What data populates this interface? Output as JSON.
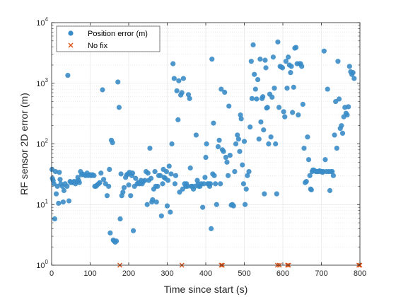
{
  "chart_data": {
    "type": "scatter",
    "title": "",
    "xlabel": "Time since start (s)",
    "ylabel": "RF sensor 2D error (m)",
    "xlim": [
      0,
      800
    ],
    "ylim": [
      1,
      10000
    ],
    "yscale": "log",
    "grid": true,
    "minor_grid": true,
    "legend_position": "top-left",
    "x_ticks": [
      0,
      100,
      200,
      300,
      400,
      500,
      600,
      700,
      800
    ],
    "y_ticks": [
      1,
      10,
      100,
      1000,
      10000
    ],
    "y_tick_labels": [
      {
        "base": "10",
        "exp": "0"
      },
      {
        "base": "10",
        "exp": "1"
      },
      {
        "base": "10",
        "exp": "2"
      },
      {
        "base": "10",
        "exp": "3"
      },
      {
        "base": "10",
        "exp": "4"
      }
    ],
    "series": [
      {
        "name": "Position error (m)",
        "marker": "circle",
        "color": "#3a8cc8",
        "points": [
          [
            1,
            38
          ],
          [
            2,
            27
          ],
          [
            4,
            25
          ],
          [
            6,
            22
          ],
          [
            8,
            5.8
          ],
          [
            10,
            35
          ],
          [
            12,
            15
          ],
          [
            15,
            20
          ],
          [
            18,
            10.5
          ],
          [
            20,
            34
          ],
          [
            22,
            26
          ],
          [
            24,
            22
          ],
          [
            28,
            20
          ],
          [
            30,
            11
          ],
          [
            32,
            17
          ],
          [
            35,
            22
          ],
          [
            40,
            20
          ],
          [
            42,
            1350
          ],
          [
            45,
            11.5
          ],
          [
            48,
            24
          ],
          [
            50,
            23
          ],
          [
            55,
            23
          ],
          [
            58,
            24
          ],
          [
            62,
            22
          ],
          [
            65,
            24
          ],
          [
            68,
            28
          ],
          [
            70,
            25
          ],
          [
            72,
            23
          ],
          [
            75,
            35
          ],
          [
            78,
            31
          ],
          [
            80,
            32
          ],
          [
            85,
            31
          ],
          [
            88,
            30
          ],
          [
            92,
            33
          ],
          [
            95,
            30
          ],
          [
            100,
            31
          ],
          [
            103,
            30
          ],
          [
            106,
            31
          ],
          [
            110,
            30
          ],
          [
            112,
            20
          ],
          [
            115,
            20
          ],
          [
            118,
            21
          ],
          [
            122,
            22
          ],
          [
            125,
            23
          ],
          [
            128,
            33
          ],
          [
            132,
            780
          ],
          [
            135,
            26
          ],
          [
            140,
            22
          ],
          [
            144,
            14
          ],
          [
            148,
            20
          ],
          [
            150,
            38
          ],
          [
            152,
            3.4
          ],
          [
            155,
            115
          ],
          [
            158,
            105
          ],
          [
            160,
            2.6
          ],
          [
            162,
            2.5
          ],
          [
            165,
            2.4
          ],
          [
            168,
            2.5
          ],
          [
            172,
            1050
          ],
          [
            175,
            400
          ],
          [
            178,
            5.8
          ],
          [
            180,
            32
          ],
          [
            182,
            14
          ],
          [
            185,
            16
          ],
          [
            188,
            19
          ],
          [
            192,
            28
          ],
          [
            195,
            31
          ],
          [
            198,
            32
          ],
          [
            200,
            21
          ],
          [
            202,
            34
          ],
          [
            205,
            14
          ],
          [
            208,
            30
          ],
          [
            210,
            33
          ],
          [
            212,
            3.7
          ],
          [
            215,
            20
          ],
          [
            218,
            27
          ],
          [
            222,
            22
          ],
          [
            225,
            23
          ],
          [
            228,
            22
          ],
          [
            230,
            23
          ],
          [
            232,
            25
          ],
          [
            235,
            22
          ],
          [
            238,
            24
          ],
          [
            242,
            25
          ],
          [
            245,
            35
          ],
          [
            248,
            10
          ],
          [
            250,
            33
          ],
          [
            252,
            25
          ],
          [
            255,
            85
          ],
          [
            258,
            27
          ],
          [
            260,
            11
          ],
          [
            262,
            12
          ],
          [
            265,
            18
          ],
          [
            268,
            35
          ],
          [
            270,
            20
          ],
          [
            272,
            11
          ],
          [
            275,
            20
          ],
          [
            278,
            30
          ],
          [
            282,
            30
          ],
          [
            285,
            6.5
          ],
          [
            288,
            22
          ],
          [
            290,
            38
          ],
          [
            292,
            28
          ],
          [
            295,
            27
          ],
          [
            298,
            35
          ],
          [
            300,
            9.5
          ],
          [
            302,
            25
          ],
          [
            305,
            43
          ],
          [
            308,
            7.5
          ],
          [
            310,
            32
          ],
          [
            312,
            100
          ],
          [
            315,
            2100
          ],
          [
            318,
            1200
          ],
          [
            320,
            22
          ],
          [
            322,
            30
          ],
          [
            325,
            750
          ],
          [
            328,
            250
          ],
          [
            330,
            1100
          ],
          [
            332,
            16
          ],
          [
            335,
            640
          ],
          [
            338,
            700
          ],
          [
            340,
            18
          ],
          [
            342,
            1200
          ],
          [
            345,
            22
          ],
          [
            348,
            20
          ],
          [
            350,
            22
          ],
          [
            352,
            20
          ],
          [
            355,
            650
          ],
          [
            358,
            560
          ],
          [
            360,
            40
          ],
          [
            362,
            20
          ],
          [
            365,
            20
          ],
          [
            368,
            18
          ],
          [
            372,
            20
          ],
          [
            375,
            140
          ],
          [
            378,
            25
          ],
          [
            380,
            22
          ],
          [
            382,
            20
          ],
          [
            385,
            20
          ],
          [
            388,
            22
          ],
          [
            392,
            9
          ],
          [
            395,
            22
          ],
          [
            398,
            28
          ],
          [
            400,
            60
          ],
          [
            402,
            100
          ],
          [
            405,
            22
          ],
          [
            408,
            22
          ],
          [
            410,
            20
          ],
          [
            412,
            22
          ],
          [
            414,
            4
          ],
          [
            416,
            2500
          ],
          [
            418,
            32
          ],
          [
            420,
            220
          ],
          [
            422,
            30
          ],
          [
            425,
            22
          ],
          [
            428,
            10
          ],
          [
            432,
            90
          ],
          [
            435,
            115
          ],
          [
            438,
            22
          ],
          [
            440,
            800
          ],
          [
            443,
            80
          ],
          [
            446,
            75
          ],
          [
            449,
            710
          ],
          [
            452,
            60
          ],
          [
            455,
            50
          ],
          [
            458,
            30
          ],
          [
            460,
            420
          ],
          [
            463,
            65
          ],
          [
            466,
            9.8
          ],
          [
            469,
            10
          ],
          [
            472,
            9.5
          ],
          [
            475,
            35
          ],
          [
            478,
            100
          ],
          [
            482,
            140
          ],
          [
            485,
            120
          ],
          [
            488,
            75
          ],
          [
            490,
            300
          ],
          [
            492,
            260
          ],
          [
            495,
            45
          ],
          [
            498,
            22
          ],
          [
            500,
            110
          ],
          [
            502,
            10
          ],
          [
            505,
            18
          ],
          [
            508,
            30
          ],
          [
            512,
            35
          ],
          [
            515,
            190
          ],
          [
            518,
            2300
          ],
          [
            520,
            560
          ],
          [
            523,
            4300
          ],
          [
            526,
            1400
          ],
          [
            529,
            800
          ],
          [
            532,
            550
          ],
          [
            535,
            1150
          ],
          [
            538,
            120
          ],
          [
            541,
            2500
          ],
          [
            543,
            230
          ],
          [
            546,
            560
          ],
          [
            548,
            600
          ],
          [
            550,
            170
          ],
          [
            552,
            15
          ],
          [
            554,
            2400
          ],
          [
            556,
            1800
          ],
          [
            558,
            390
          ],
          [
            560,
            400
          ],
          [
            563,
            100
          ],
          [
            566,
            660
          ],
          [
            569,
            130
          ],
          [
            572,
            590
          ],
          [
            575,
            2700
          ],
          [
            578,
            830
          ],
          [
            581,
            100
          ],
          [
            584,
            15
          ],
          [
            587,
            4800
          ],
          [
            590,
            400
          ],
          [
            593,
            1900
          ],
          [
            596,
            1850
          ],
          [
            599,
            1800
          ],
          [
            602,
            340
          ],
          [
            605,
            280
          ],
          [
            608,
            2300
          ],
          [
            611,
            830
          ],
          [
            614,
            2700
          ],
          [
            617,
            2000
          ],
          [
            620,
            1500
          ],
          [
            622,
            1900
          ],
          [
            625,
            330
          ],
          [
            628,
            860
          ],
          [
            631,
            3800
          ],
          [
            634,
            3900
          ],
          [
            637,
            2100
          ],
          [
            640,
            300
          ],
          [
            643,
            2100
          ],
          [
            646,
            2100
          ],
          [
            649,
            1900
          ],
          [
            652,
            450
          ],
          [
            655,
            85
          ],
          [
            658,
            23
          ],
          [
            661,
            24
          ],
          [
            664,
            130
          ],
          [
            667,
            55
          ],
          [
            670,
            30
          ],
          [
            672,
            18
          ],
          [
            674,
            17.5
          ],
          [
            676,
            35
          ],
          [
            678,
            37
          ],
          [
            680,
            37
          ],
          [
            683,
            36
          ],
          [
            686,
            35
          ],
          [
            689,
            35
          ],
          [
            692,
            35
          ],
          [
            695,
            36
          ],
          [
            698,
            35
          ],
          [
            701,
            35
          ],
          [
            703,
            34
          ],
          [
            705,
            35
          ],
          [
            707,
            3400
          ],
          [
            710,
            55
          ],
          [
            713,
            35
          ],
          [
            716,
            800
          ],
          [
            719,
            35
          ],
          [
            722,
            17
          ],
          [
            725,
            35
          ],
          [
            728,
            35
          ],
          [
            731,
            30
          ],
          [
            734,
            140
          ],
          [
            737,
            500
          ],
          [
            740,
            85
          ],
          [
            743,
            2300
          ],
          [
            746,
            550
          ],
          [
            749,
            180
          ],
          [
            752,
            200
          ],
          [
            755,
            150
          ],
          [
            758,
            280
          ],
          [
            761,
            400
          ],
          [
            764,
            320
          ],
          [
            767,
            300
          ],
          [
            770,
            410
          ],
          [
            773,
            1900
          ],
          [
            776,
            1550
          ],
          [
            779,
            1400
          ],
          [
            782,
            1500
          ],
          [
            785,
            1200
          ]
        ]
      },
      {
        "name": "No fix",
        "marker": "x",
        "color": "#d95319",
        "x": [
          177,
          338,
          440,
          443,
          586,
          591,
          612,
          615,
          797,
          800
        ],
        "y": [
          1,
          1,
          1,
          1,
          1,
          1,
          1,
          1,
          1,
          1
        ]
      }
    ]
  }
}
